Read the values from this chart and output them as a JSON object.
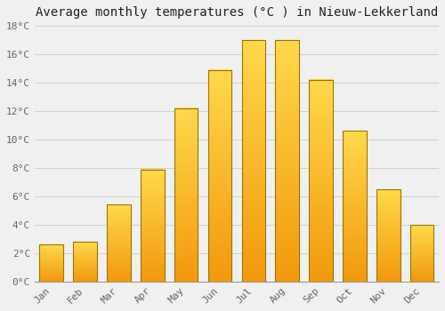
{
  "title": "Average monthly temperatures (°C ) in Nieuw-Lekkerland",
  "months": [
    "Jan",
    "Feb",
    "Mar",
    "Apr",
    "May",
    "Jun",
    "Jul",
    "Aug",
    "Sep",
    "Oct",
    "Nov",
    "Dec"
  ],
  "values": [
    2.6,
    2.8,
    5.4,
    7.9,
    12.2,
    14.9,
    17.0,
    17.0,
    14.2,
    10.6,
    6.5,
    4.0
  ],
  "bar_color": "#FFAA00",
  "bar_edge_color": "#997700",
  "ylim": [
    0,
    18
  ],
  "yticks": [
    0,
    2,
    4,
    6,
    8,
    10,
    12,
    14,
    16,
    18
  ],
  "ytick_labels": [
    "0°C",
    "2°C",
    "4°C",
    "6°C",
    "8°C",
    "10°C",
    "12°C",
    "14°C",
    "16°C",
    "18°C"
  ],
  "grid_color": "#cccccc",
  "background_color": "#f0f0f0",
  "title_fontsize": 10,
  "tick_fontsize": 8,
  "font_family": "monospace",
  "bar_width": 0.7
}
